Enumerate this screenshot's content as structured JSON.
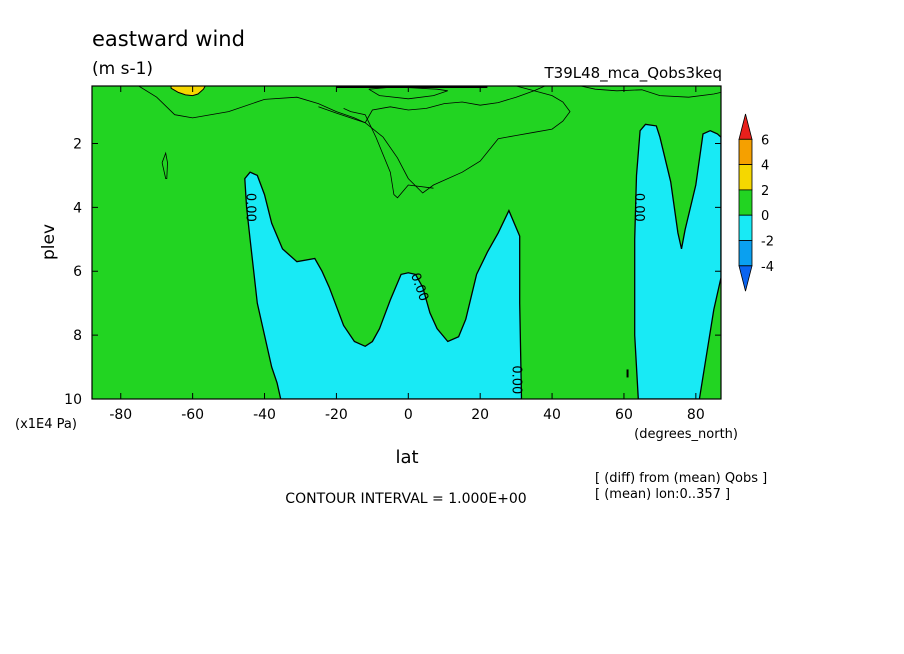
{
  "title": "eastward wind",
  "units": "(m s-1)",
  "run_name": "T39L48_mca_Qobs3keq",
  "contour_interval": "CONTOUR INTERVAL = 1.000E+00",
  "notes": [
    "[ (diff) from (mean) Qobs ]",
    "[ (mean) lon:0..357 ]"
  ],
  "chart_data": {
    "type": "contour",
    "xlabel": "lat",
    "x_unit": "(degrees_north)",
    "ylabel": "plev",
    "y_unit": "(x1E4 Pa)",
    "xlim": [
      -88,
      87
    ],
    "ylim": [
      10,
      0.2
    ],
    "x_ticks": [
      -80,
      -60,
      -40,
      -20,
      0,
      20,
      40,
      60,
      80
    ],
    "x_tick_labels": [
      "-80",
      "-60",
      "-40",
      "-20",
      "0",
      "20",
      "40",
      "60",
      "80"
    ],
    "y_ticks": [
      2,
      4,
      6,
      8,
      10
    ],
    "y_tick_labels": [
      "2",
      "4",
      "6",
      "8",
      "10"
    ],
    "colorbar": {
      "tick_labels": [
        "6",
        "4",
        "2",
        "0",
        "-2",
        "-4"
      ],
      "bins": [
        {
          "range": "above 6",
          "color": "#e8201c"
        },
        {
          "range": "4 to 6",
          "color": "#f5a000"
        },
        {
          "range": "2 to 4",
          "color": "#f5d700"
        },
        {
          "range": "0 to 2",
          "color": "#22d422"
        },
        {
          "range": "-2 to 0",
          "color": "#18eaf5"
        },
        {
          "range": "-4 to -2",
          "color": "#0aa0f0"
        },
        {
          "range": "below -4",
          "color": "#0a64f0"
        }
      ]
    },
    "contour_labels": [
      {
        "text": "0.00",
        "lat": -44,
        "plev": 4.0
      },
      {
        "text": "0.00",
        "lat": 3,
        "plev": 6.5
      },
      {
        "text": "0.00",
        "lat": 30,
        "plev": 9.4
      },
      {
        "text": "0.00",
        "lat": 64,
        "plev": 4.0
      }
    ],
    "negative_regions": [
      {
        "label": "southern-midlatitude",
        "outline": [
          [
            -35.5,
            10
          ],
          [
            -36.5,
            9.5
          ],
          [
            -38,
            9
          ],
          [
            -40,
            8
          ],
          [
            -42,
            7
          ],
          [
            -43,
            6
          ],
          [
            -44,
            5
          ],
          [
            -45,
            4
          ],
          [
            -45.5,
            3.1
          ],
          [
            -44,
            2.9
          ],
          [
            -42,
            3
          ],
          [
            -40,
            3.6
          ],
          [
            -38,
            4.5
          ],
          [
            -35,
            5.3
          ],
          [
            -31,
            5.7
          ],
          [
            -26,
            5.6
          ],
          [
            -24,
            6
          ],
          [
            -22,
            6.5
          ],
          [
            -18,
            7.7
          ],
          [
            -15,
            8.2
          ],
          [
            -12,
            8.35
          ],
          [
            -10,
            8.2
          ],
          [
            -8,
            7.8
          ],
          [
            -5,
            6.9
          ],
          [
            -2,
            6.1
          ],
          [
            0,
            6.05
          ],
          [
            2,
            6.1
          ],
          [
            4,
            6.5
          ],
          [
            6,
            7.3
          ],
          [
            8,
            7.8
          ],
          [
            11,
            8.2
          ],
          [
            14,
            8.05
          ],
          [
            16,
            7.5
          ],
          [
            19,
            6.1
          ],
          [
            22,
            5.4
          ],
          [
            25,
            4.8
          ],
          [
            28,
            4.1
          ],
          [
            31,
            4.9
          ],
          [
            31,
            7
          ],
          [
            31.5,
            10
          ]
        ]
      },
      {
        "label": "northern-high",
        "outline": [
          [
            64,
            10
          ],
          [
            63,
            8
          ],
          [
            63,
            5
          ],
          [
            63.5,
            3
          ],
          [
            64.5,
            1.6
          ],
          [
            66,
            1.4
          ],
          [
            69,
            1.45
          ],
          [
            70,
            1.8
          ],
          [
            73,
            3.2
          ],
          [
            75,
            4.8
          ],
          [
            76,
            5.3
          ],
          [
            77,
            4.7
          ],
          [
            80,
            3.3
          ],
          [
            82,
            1.7
          ],
          [
            84,
            1.6
          ],
          [
            86,
            1.7
          ],
          [
            87,
            1.8
          ],
          [
            87,
            6.2
          ],
          [
            85,
            7.2
          ],
          [
            83,
            8.6
          ],
          [
            81,
            10
          ]
        ]
      }
    ],
    "positive_regions": [
      {
        "label": "southern-jet-yellow",
        "level": "2 to 4",
        "outline": [
          [
            -66,
            0.2
          ],
          [
            -66,
            0.27
          ],
          [
            -64,
            0.4
          ],
          [
            -62,
            0.48
          ],
          [
            -60,
            0.5
          ],
          [
            -58.5,
            0.45
          ],
          [
            -57,
            0.3
          ],
          [
            -56.5,
            0.2
          ]
        ]
      }
    ],
    "contour_lines": [
      {
        "label": "upper-band-2",
        "points": [
          [
            -75,
            0.2
          ],
          [
            -70,
            0.55
          ],
          [
            -65,
            1.1
          ],
          [
            -60,
            1.2
          ],
          [
            -50,
            1.0
          ],
          [
            -40,
            0.62
          ],
          [
            -31,
            0.55
          ],
          [
            -25,
            0.75
          ],
          [
            -20,
            1.0
          ],
          [
            -15,
            1.2
          ],
          [
            -12,
            1.35
          ],
          [
            -10,
            0.95
          ],
          [
            -5,
            0.85
          ],
          [
            0,
            0.95
          ],
          [
            5,
            0.9
          ],
          [
            10,
            0.75
          ],
          [
            15,
            0.7
          ],
          [
            20,
            0.8
          ],
          [
            25,
            0.72
          ],
          [
            30,
            0.55
          ],
          [
            35,
            0.35
          ],
          [
            38,
            0.2
          ]
        ]
      },
      {
        "label": "upper-band-2-lower",
        "points": [
          [
            -25,
            0.85
          ],
          [
            -20,
            1.05
          ],
          [
            -12,
            1.35
          ],
          [
            -7,
            1.8
          ],
          [
            -3,
            2.45
          ],
          [
            0,
            3.1
          ],
          [
            4,
            3.55
          ],
          [
            7,
            3.3
          ],
          [
            15,
            2.9
          ],
          [
            20,
            2.55
          ],
          [
            25,
            1.85
          ],
          [
            30,
            1.75
          ],
          [
            35,
            1.65
          ],
          [
            40,
            1.55
          ],
          [
            43,
            1.3
          ],
          [
            45,
            1.0
          ],
          [
            43,
            0.7
          ],
          [
            40,
            0.5
          ],
          [
            35,
            0.35
          ],
          [
            30,
            0.2
          ]
        ]
      },
      {
        "label": "tip-to-dip",
        "points": [
          [
            -18,
            0.9
          ],
          [
            -16,
            1.0
          ],
          [
            -12,
            1.1
          ],
          [
            -9,
            1.8
          ],
          [
            -5,
            2.9
          ],
          [
            -4,
            3.6
          ],
          [
            -3,
            3.7
          ],
          [
            0,
            3.3
          ],
          [
            7,
            3.4
          ]
        ]
      },
      {
        "label": "small-loop-equator",
        "points": [
          [
            -11,
            0.3
          ],
          [
            -8,
            0.5
          ],
          [
            0,
            0.6
          ],
          [
            7,
            0.5
          ],
          [
            11,
            0.35
          ],
          [
            8,
            0.3
          ],
          [
            0,
            0.25
          ],
          [
            -6,
            0.25
          ],
          [
            -11,
            0.3
          ]
        ]
      },
      {
        "label": "north-top",
        "points": [
          [
            48,
            0.2
          ],
          [
            52,
            0.3
          ],
          [
            58,
            0.35
          ],
          [
            65,
            0.32
          ],
          [
            70,
            0.5
          ],
          [
            78,
            0.55
          ],
          [
            85,
            0.45
          ],
          [
            87,
            0.4
          ]
        ]
      },
      {
        "label": "sliver",
        "points": [
          [
            -68.5,
            2.6
          ],
          [
            -67.5,
            2.3
          ],
          [
            -67,
            2.6
          ],
          [
            -67.2,
            3.1
          ],
          [
            -67.5,
            3.1
          ],
          [
            -68.5,
            2.6
          ]
        ]
      }
    ],
    "markers": [
      {
        "lat": 61,
        "plev": 9.2
      }
    ]
  }
}
